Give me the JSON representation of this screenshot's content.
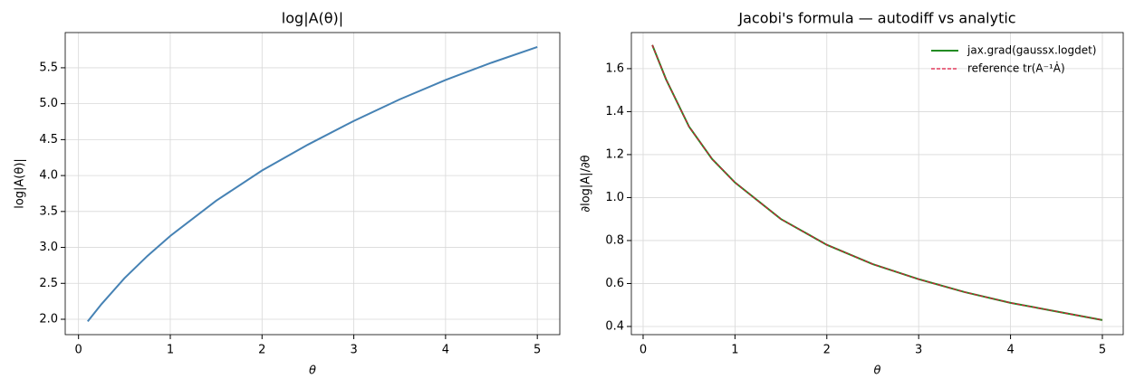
{
  "chart_data": [
    {
      "type": "line",
      "title": "log|A(θ)|",
      "x_label": "θ",
      "y_label": "log|A(θ)|",
      "x": [
        0.1,
        0.25,
        0.5,
        0.75,
        1,
        1.5,
        2,
        2.5,
        3,
        3.5,
        4,
        4.5,
        5
      ],
      "series": [
        {
          "name": null,
          "color": "#4682b4",
          "style": "solid",
          "values": [
            1.97,
            2.21,
            2.57,
            2.88,
            3.16,
            3.65,
            4.07,
            4.43,
            4.76,
            5.06,
            5.33,
            5.57,
            5.79
          ]
        }
      ],
      "xlim": [
        -0.145,
        5.245
      ],
      "xticks": [
        0,
        1,
        2,
        3,
        4,
        5
      ],
      "ylim": [
        1.786,
        5.99
      ],
      "yticks": [
        2.0,
        2.5,
        3.0,
        3.5,
        4.0,
        4.5,
        5.0,
        5.5
      ],
      "grid": true
    },
    {
      "type": "line",
      "title": "Jacobi's formula — autodiff vs analytic",
      "x_label": "θ",
      "y_label": "∂log|A|/∂θ",
      "x": [
        0.1,
        0.25,
        0.5,
        0.75,
        1,
        1.5,
        2,
        2.5,
        3,
        3.5,
        4,
        4.5,
        5
      ],
      "series": [
        {
          "name": "jax.grad(gaussx.logdet)",
          "color": "#228b22",
          "style": "solid",
          "values": [
            1.71,
            1.55,
            1.33,
            1.18,
            1.07,
            0.9,
            0.78,
            0.69,
            0.62,
            0.56,
            0.51,
            0.47,
            0.43
          ]
        },
        {
          "name": "reference tr(A⁻¹Ȧ)",
          "color": "#dc143c",
          "style": "dashed",
          "values": [
            1.71,
            1.55,
            1.33,
            1.18,
            1.07,
            0.9,
            0.78,
            0.69,
            0.62,
            0.56,
            0.51,
            0.47,
            0.43
          ]
        }
      ],
      "xlim": [
        -0.128,
        5.227
      ],
      "xticks": [
        0,
        1,
        2,
        3,
        4,
        5
      ],
      "ylim": [
        0.362,
        1.768
      ],
      "yticks": [
        0.4,
        0.6,
        0.8,
        1.0,
        1.2,
        1.4,
        1.6
      ],
      "grid": true,
      "legend": "upper right"
    }
  ]
}
